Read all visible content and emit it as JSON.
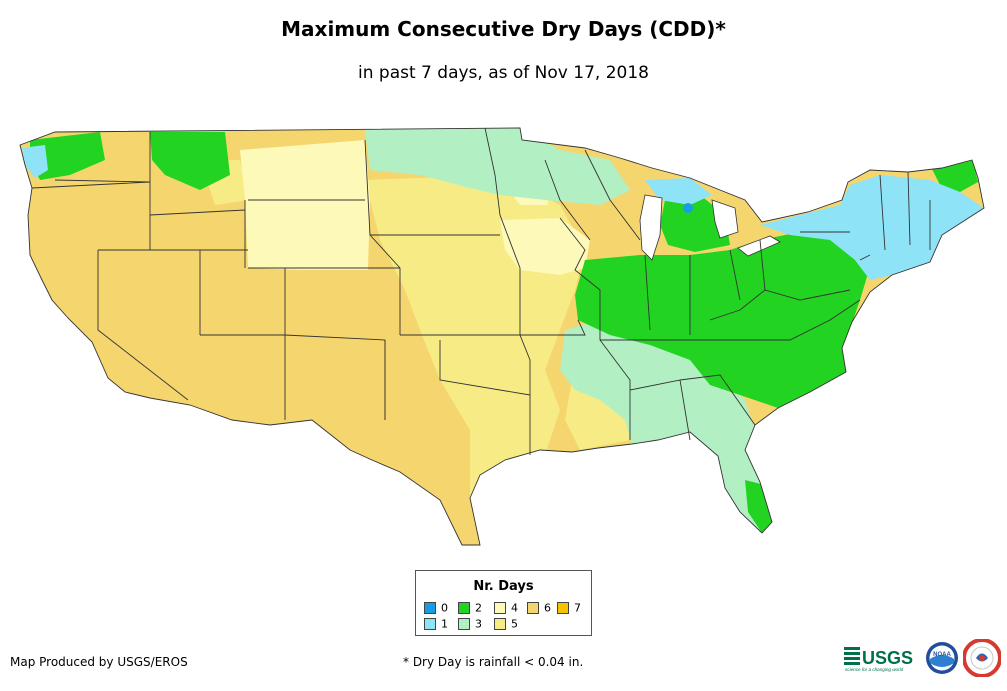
{
  "title": "Maximum Consecutive Dry Days (CDD)*",
  "subtitle": "in past 7 days, as of Nov 17, 2018",
  "legend": {
    "title": "Nr. Days",
    "items": [
      {
        "label": "0",
        "color": "#1a9be6"
      },
      {
        "label": "1",
        "color": "#8fe3f7"
      },
      {
        "label": "2",
        "color": "#22d322"
      },
      {
        "label": "3",
        "color": "#b2f0c3"
      },
      {
        "label": "4",
        "color": "#fdf9b8"
      },
      {
        "label": "5",
        "color": "#f7eb86"
      },
      {
        "label": "6",
        "color": "#f5d66e"
      },
      {
        "label": "7",
        "color": "#f5c300"
      }
    ]
  },
  "map_colors": {
    "zero": "#1a9be6",
    "one": "#8fe3f7",
    "two": "#22d322",
    "three": "#b2f0c3",
    "four": "#fdf9b8",
    "five": "#f7eb86",
    "six": "#f5d66e",
    "lake": "#ffffff",
    "border": "#333333"
  },
  "credit": "Map Produced by USGS/EROS",
  "footnote": "* Dry Day is rainfall < 0.04 in.",
  "logos": {
    "usgs_text": "USGS",
    "usgs_tagline": "science for a changing world",
    "noaa_text": "NOAA"
  }
}
